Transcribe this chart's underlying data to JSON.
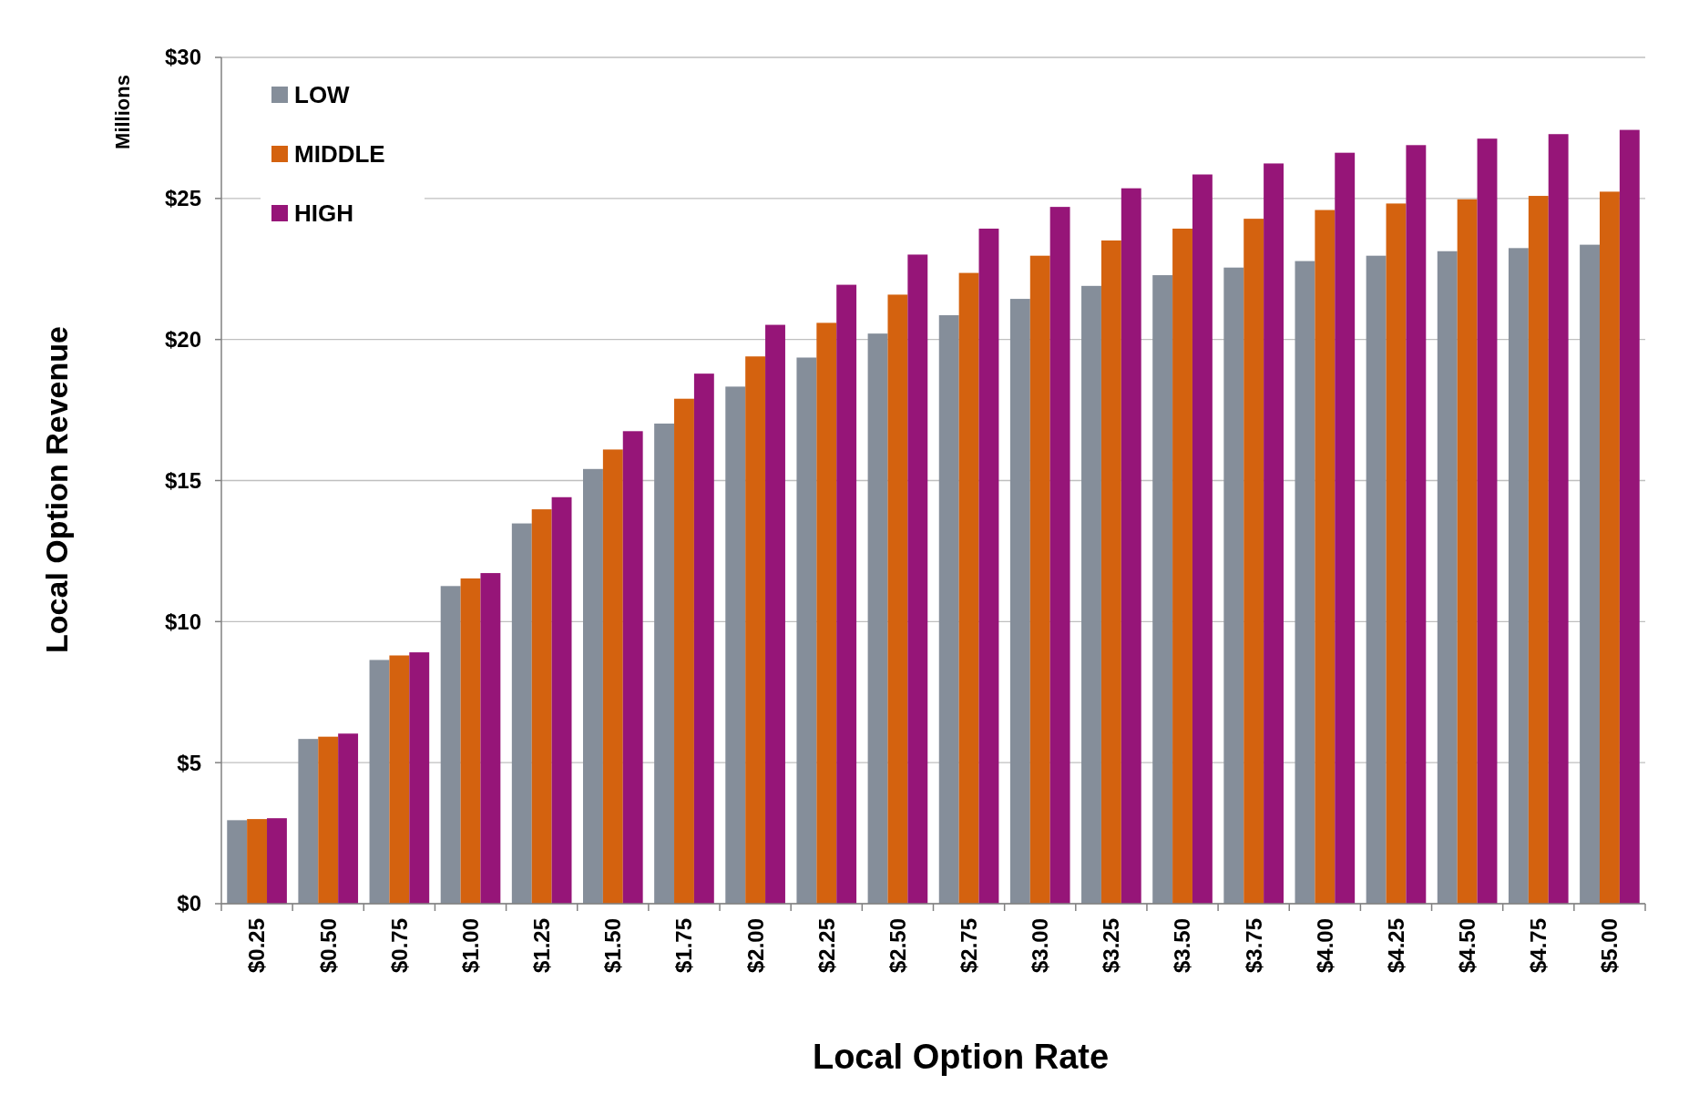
{
  "chart_data": {
    "type": "bar",
    "xlabel": "Local Option Rate",
    "ylabel": "Local Option Revenue",
    "annotations": [
      "Millions"
    ],
    "categories": [
      "$0.25",
      "$0.50",
      "$0.75",
      "$1.00",
      "$1.25",
      "$1.50",
      "$1.75",
      "$2.00",
      "$2.25",
      "$2.50",
      "$2.75",
      "$3.00",
      "$3.25",
      "$3.50",
      "$3.75",
      "$4.00",
      "$4.25",
      "$4.50",
      "$4.75",
      "$5.00"
    ],
    "series": [
      {
        "name": "LOW",
        "color": "#858e9a",
        "values": [
          2.96,
          5.84,
          8.64,
          11.26,
          13.48,
          15.41,
          17.02,
          18.33,
          19.36,
          20.21,
          20.86,
          21.44,
          21.9,
          22.28,
          22.55,
          22.78,
          22.97,
          23.13,
          23.24,
          23.36
        ]
      },
      {
        "name": "MIDDLE",
        "color": "#d4620f",
        "values": [
          3.0,
          5.92,
          8.8,
          11.53,
          13.98,
          16.1,
          17.9,
          19.4,
          20.59,
          21.59,
          22.36,
          22.97,
          23.51,
          23.93,
          24.28,
          24.59,
          24.82,
          24.97,
          25.09,
          25.24
        ]
      },
      {
        "name": "HIGH",
        "color": "#961578",
        "values": [
          3.03,
          6.03,
          8.91,
          11.72,
          14.41,
          16.75,
          18.79,
          20.52,
          21.94,
          23.01,
          23.93,
          24.7,
          25.36,
          25.85,
          26.24,
          26.62,
          26.89,
          27.12,
          27.28,
          27.43
        ]
      }
    ],
    "ylim": [
      0,
      30
    ],
    "yticks": [
      {
        "value": 0,
        "label": "$0"
      },
      {
        "value": 5,
        "label": "$5"
      },
      {
        "value": 10,
        "label": "$10"
      },
      {
        "value": 15,
        "label": "$15"
      },
      {
        "value": 20,
        "label": "$20"
      },
      {
        "value": 25,
        "label": "$25"
      },
      {
        "value": 30,
        "label": "$30"
      }
    ],
    "grid": "y",
    "legend": "top left"
  }
}
